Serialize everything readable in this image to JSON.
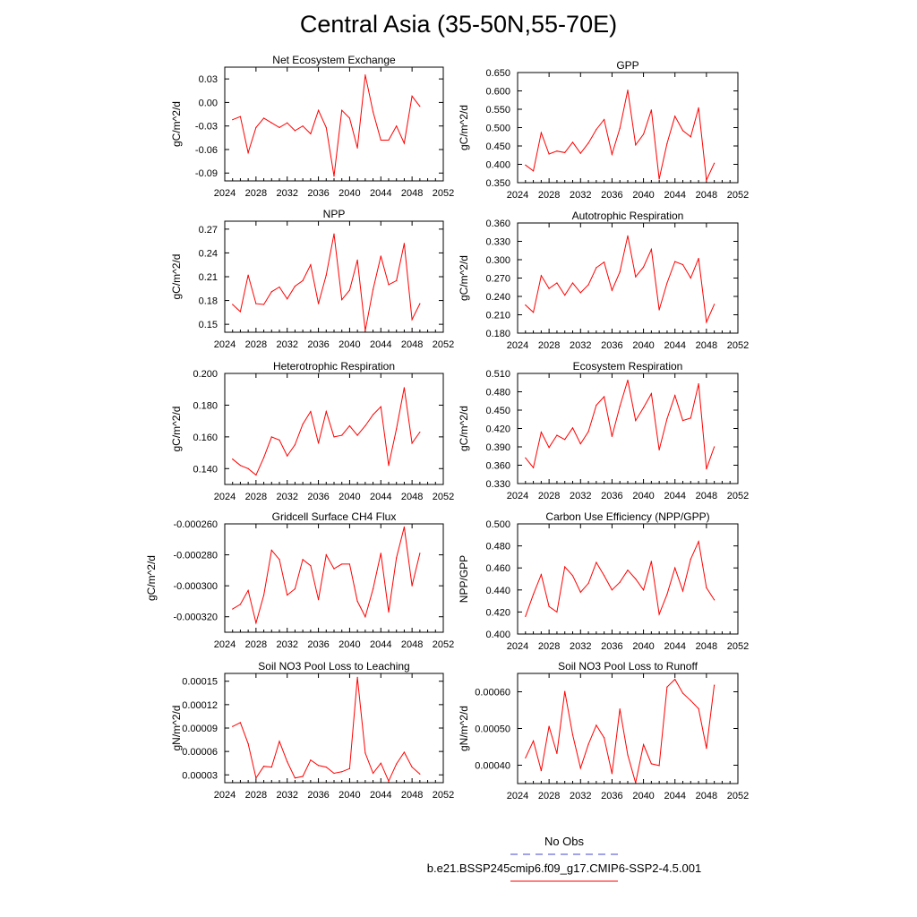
{
  "page_title": "Central Asia (35-50N,55-70E)",
  "colors": {
    "model_line": "#ff0000",
    "obs_line": "#4444cc",
    "axis": "#000000"
  },
  "legend": {
    "obs_label": "No Obs",
    "model_label": "b.e21.BSSP245cmip6.f09_g17.CMIP6-SSP2-4.5.001"
  },
  "chart_data": [
    {
      "type": "line",
      "title": "Net Ecosystem Exchange",
      "ylabel": "gC/m^2/d",
      "xlim": [
        2024,
        2052
      ],
      "ylim": [
        -0.1,
        0.045
      ],
      "x_ticks": [
        2024,
        2028,
        2032,
        2036,
        2040,
        2044,
        2048,
        2052
      ],
      "y_ticks": [
        0.03,
        0.0,
        -0.03,
        -0.06,
        -0.09
      ],
      "y_tick_labels": [
        "0.03",
        "0.00",
        "-0.03",
        "-0.06",
        "-0.09"
      ],
      "x": [
        2025,
        2026,
        2027,
        2028,
        2029,
        2030,
        2031,
        2032,
        2033,
        2034,
        2035,
        2036,
        2037,
        2038,
        2039,
        2040,
        2041,
        2042,
        2043,
        2044,
        2045,
        2046,
        2047,
        2048,
        2049
      ],
      "values": [
        -0.022,
        -0.018,
        -0.064,
        -0.032,
        -0.02,
        -0.026,
        -0.032,
        -0.026,
        -0.036,
        -0.03,
        -0.04,
        -0.01,
        -0.032,
        -0.094,
        -0.01,
        -0.02,
        -0.058,
        0.035,
        -0.012,
        -0.048,
        -0.048,
        -0.03,
        -0.052,
        0.008,
        -0.005
      ]
    },
    {
      "type": "line",
      "title": "GPP",
      "ylabel": "gC/m^2/d",
      "xlim": [
        2024,
        2052
      ],
      "ylim": [
        0.35,
        0.65
      ],
      "x_ticks": [
        2024,
        2028,
        2032,
        2036,
        2040,
        2044,
        2048,
        2052
      ],
      "y_ticks": [
        0.65,
        0.6,
        0.55,
        0.5,
        0.45,
        0.4,
        0.35
      ],
      "y_tick_labels": [
        "0.650",
        "0.600",
        "0.550",
        "0.500",
        "0.450",
        "0.400",
        "0.350"
      ],
      "x": [
        2025,
        2026,
        2027,
        2028,
        2029,
        2030,
        2031,
        2032,
        2033,
        2034,
        2035,
        2036,
        2037,
        2038,
        2039,
        2040,
        2041,
        2042,
        2043,
        2044,
        2045,
        2046,
        2047,
        2048,
        2049
      ],
      "values": [
        0.398,
        0.382,
        0.486,
        0.428,
        0.436,
        0.432,
        0.46,
        0.43,
        0.458,
        0.495,
        0.522,
        0.427,
        0.498,
        0.602,
        0.453,
        0.482,
        0.548,
        0.36,
        0.457,
        0.531,
        0.492,
        0.475,
        0.554,
        0.357,
        0.403
      ]
    },
    {
      "type": "line",
      "title": "NPP",
      "ylabel": "gC/m^2/d",
      "xlim": [
        2024,
        2052
      ],
      "ylim": [
        0.14,
        0.28
      ],
      "x_ticks": [
        2024,
        2028,
        2032,
        2036,
        2040,
        2044,
        2048,
        2052
      ],
      "y_ticks": [
        0.27,
        0.24,
        0.21,
        0.18,
        0.15
      ],
      "y_tick_labels": [
        "0.27",
        "0.24",
        "0.21",
        "0.18",
        "0.15"
      ],
      "x": [
        2025,
        2026,
        2027,
        2028,
        2029,
        2030,
        2031,
        2032,
        2033,
        2034,
        2035,
        2036,
        2037,
        2038,
        2039,
        2040,
        2041,
        2042,
        2043,
        2044,
        2045,
        2046,
        2047,
        2048,
        2049
      ],
      "values": [
        0.175,
        0.166,
        0.212,
        0.176,
        0.175,
        0.191,
        0.197,
        0.182,
        0.198,
        0.205,
        0.225,
        0.176,
        0.212,
        0.264,
        0.181,
        0.193,
        0.231,
        0.142,
        0.194,
        0.236,
        0.2,
        0.205,
        0.252,
        0.156,
        0.176
      ]
    },
    {
      "type": "line",
      "title": "Autotrophic Respiration",
      "ylabel": "gC/m^2/d",
      "xlim": [
        2024,
        2052
      ],
      "ylim": [
        0.18,
        0.36
      ],
      "x_ticks": [
        2024,
        2028,
        2032,
        2036,
        2040,
        2044,
        2048,
        2052
      ],
      "y_ticks": [
        0.36,
        0.33,
        0.3,
        0.27,
        0.24,
        0.21,
        0.18
      ],
      "y_tick_labels": [
        "0.360",
        "0.330",
        "0.300",
        "0.270",
        "0.240",
        "0.210",
        "0.180"
      ],
      "x": [
        2025,
        2026,
        2027,
        2028,
        2029,
        2030,
        2031,
        2032,
        2033,
        2034,
        2035,
        2036,
        2037,
        2038,
        2039,
        2040,
        2041,
        2042,
        2043,
        2044,
        2045,
        2046,
        2047,
        2048,
        2049
      ],
      "values": [
        0.226,
        0.214,
        0.274,
        0.253,
        0.262,
        0.242,
        0.262,
        0.246,
        0.259,
        0.287,
        0.296,
        0.25,
        0.28,
        0.339,
        0.272,
        0.288,
        0.317,
        0.218,
        0.262,
        0.297,
        0.292,
        0.27,
        0.302,
        0.198,
        0.227
      ]
    },
    {
      "type": "line",
      "title": "Heterotrophic Respiration",
      "ylabel": "gC/m^2/d",
      "xlim": [
        2024,
        2052
      ],
      "ylim": [
        0.13,
        0.2
      ],
      "x_ticks": [
        2024,
        2028,
        2032,
        2036,
        2040,
        2044,
        2048,
        2052
      ],
      "y_ticks": [
        0.2,
        0.18,
        0.16,
        0.14
      ],
      "y_tick_labels": [
        "0.200",
        "0.180",
        "0.160",
        "0.140"
      ],
      "x": [
        2025,
        2026,
        2027,
        2028,
        2029,
        2030,
        2031,
        2032,
        2033,
        2034,
        2035,
        2036,
        2037,
        2038,
        2039,
        2040,
        2041,
        2042,
        2043,
        2044,
        2045,
        2046,
        2047,
        2048,
        2049
      ],
      "values": [
        0.146,
        0.142,
        0.14,
        0.136,
        0.147,
        0.16,
        0.158,
        0.148,
        0.155,
        0.168,
        0.176,
        0.156,
        0.176,
        0.16,
        0.161,
        0.167,
        0.161,
        0.167,
        0.174,
        0.179,
        0.142,
        0.165,
        0.191,
        0.156,
        0.163
      ]
    },
    {
      "type": "line",
      "title": "Ecosystem Respiration",
      "ylabel": "gC/m^2/d",
      "xlim": [
        2024,
        2052
      ],
      "ylim": [
        0.33,
        0.51
      ],
      "x_ticks": [
        2024,
        2028,
        2032,
        2036,
        2040,
        2044,
        2048,
        2052
      ],
      "y_ticks": [
        0.51,
        0.48,
        0.45,
        0.42,
        0.39,
        0.36,
        0.33
      ],
      "y_tick_labels": [
        "0.510",
        "0.480",
        "0.450",
        "0.420",
        "0.390",
        "0.360",
        "0.330"
      ],
      "x": [
        2025,
        2026,
        2027,
        2028,
        2029,
        2030,
        2031,
        2032,
        2033,
        2034,
        2035,
        2036,
        2037,
        2038,
        2039,
        2040,
        2041,
        2042,
        2043,
        2044,
        2045,
        2046,
        2047,
        2048,
        2049
      ],
      "values": [
        0.372,
        0.356,
        0.414,
        0.389,
        0.409,
        0.402,
        0.421,
        0.395,
        0.415,
        0.458,
        0.472,
        0.407,
        0.456,
        0.499,
        0.433,
        0.454,
        0.477,
        0.385,
        0.436,
        0.474,
        0.433,
        0.437,
        0.493,
        0.354,
        0.39
      ]
    },
    {
      "type": "line",
      "title": "Gridcell Surface CH4 Flux",
      "ylabel": "gC/m^2/d",
      "xlim": [
        2024,
        2052
      ],
      "ylim": [
        -0.00033,
        -0.00026
      ],
      "x_ticks": [
        2024,
        2028,
        2032,
        2036,
        2040,
        2044,
        2048,
        2052
      ],
      "y_ticks": [
        -0.00026,
        -0.00028,
        -0.0003,
        -0.00032
      ],
      "y_tick_labels": [
        "-0.000260",
        "-0.000280",
        "-0.000300",
        "-0.000320"
      ],
      "x": [
        2025,
        2026,
        2027,
        2028,
        2029,
        2030,
        2031,
        2032,
        2033,
        2034,
        2035,
        2036,
        2037,
        2038,
        2039,
        2040,
        2041,
        2042,
        2043,
        2044,
        2045,
        2046,
        2047,
        2048,
        2049
      ],
      "values": [
        -0.000315,
        -0.000312,
        -0.000303,
        -0.000324,
        -0.000306,
        -0.000277,
        -0.000283,
        -0.000306,
        -0.000302,
        -0.000283,
        -0.000287,
        -0.000309,
        -0.00028,
        -0.000289,
        -0.000286,
        -0.000286,
        -0.00031,
        -0.00032,
        -0.000302,
        -0.000279,
        -0.000317,
        -0.000282,
        -0.000262,
        -0.0003,
        -0.000279
      ]
    },
    {
      "type": "line",
      "title": "Carbon Use Efficiency (NPP/GPP)",
      "ylabel": "NPP/GPP",
      "xlim": [
        2024,
        2052
      ],
      "ylim": [
        0.4,
        0.5
      ],
      "x_ticks": [
        2024,
        2028,
        2032,
        2036,
        2040,
        2044,
        2048,
        2052
      ],
      "y_ticks": [
        0.5,
        0.48,
        0.46,
        0.44,
        0.42,
        0.4
      ],
      "y_tick_labels": [
        "0.500",
        "0.480",
        "0.460",
        "0.440",
        "0.420",
        "0.400"
      ],
      "x": [
        2025,
        2026,
        2027,
        2028,
        2029,
        2030,
        2031,
        2032,
        2033,
        2034,
        2035,
        2036,
        2037,
        2038,
        2039,
        2040,
        2041,
        2042,
        2043,
        2044,
        2045,
        2046,
        2047,
        2048,
        2049
      ],
      "values": [
        0.416,
        0.436,
        0.454,
        0.425,
        0.42,
        0.461,
        0.453,
        0.438,
        0.446,
        0.465,
        0.453,
        0.44,
        0.447,
        0.458,
        0.45,
        0.44,
        0.466,
        0.418,
        0.436,
        0.46,
        0.439,
        0.468,
        0.484,
        0.442,
        0.431
      ]
    },
    {
      "type": "line",
      "title": "Soil NO3 Pool Loss to Leaching",
      "ylabel": "gN/m^2/d",
      "xlim": [
        2024,
        2052
      ],
      "ylim": [
        2e-05,
        0.00016
      ],
      "x_ticks": [
        2024,
        2028,
        2032,
        2036,
        2040,
        2044,
        2048,
        2052
      ],
      "y_ticks": [
        0.00015,
        0.00012,
        9e-05,
        6e-05,
        3e-05
      ],
      "y_tick_labels": [
        "0.00015",
        "0.00012",
        "0.00009",
        "0.00006",
        "0.00003"
      ],
      "x": [
        2025,
        2026,
        2027,
        2028,
        2029,
        2030,
        2031,
        2032,
        2033,
        2034,
        2035,
        2036,
        2037,
        2038,
        2039,
        2040,
        2041,
        2042,
        2043,
        2044,
        2045,
        2046,
        2047,
        2048,
        2049
      ],
      "values": [
        9.2e-05,
        9.7e-05,
        7e-05,
        2.6e-05,
        4.1e-05,
        4e-05,
        7.3e-05,
        4.7e-05,
        2.6e-05,
        2.8e-05,
        4.9e-05,
        4.2e-05,
        4e-05,
        3.2e-05,
        3.4e-05,
        3.8e-05,
        0.000155,
        5.8e-05,
        3.2e-05,
        4.5e-05,
        2.2e-05,
        4.4e-05,
        5.9e-05,
        4e-05,
        3.1e-05
      ]
    },
    {
      "type": "line",
      "title": "Soil NO3 Pool Loss to Runoff",
      "ylabel": "gN/m^2/d",
      "xlim": [
        2024,
        2052
      ],
      "ylim": [
        0.00035,
        0.00065
      ],
      "x_ticks": [
        2024,
        2028,
        2032,
        2036,
        2040,
        2044,
        2048,
        2052
      ],
      "y_ticks": [
        0.0006,
        0.0005,
        0.0004
      ],
      "y_tick_labels": [
        "0.00060",
        "0.00050",
        "0.00040"
      ],
      "x": [
        2025,
        2026,
        2027,
        2028,
        2029,
        2030,
        2031,
        2032,
        2033,
        2034,
        2035,
        2036,
        2037,
        2038,
        2039,
        2040,
        2041,
        2042,
        2043,
        2044,
        2045,
        2046,
        2047,
        2048,
        2049
      ],
      "values": [
        0.00042,
        0.000466,
        0.000385,
        0.000506,
        0.000432,
        0.000601,
        0.000483,
        0.000392,
        0.000457,
        0.000509,
        0.000475,
        0.000377,
        0.000553,
        0.000428,
        0.000352,
        0.000456,
        0.000404,
        0.000399,
        0.000613,
        0.000634,
        0.000596,
        0.000576,
        0.000554,
        0.000446,
        0.000618
      ]
    }
  ]
}
